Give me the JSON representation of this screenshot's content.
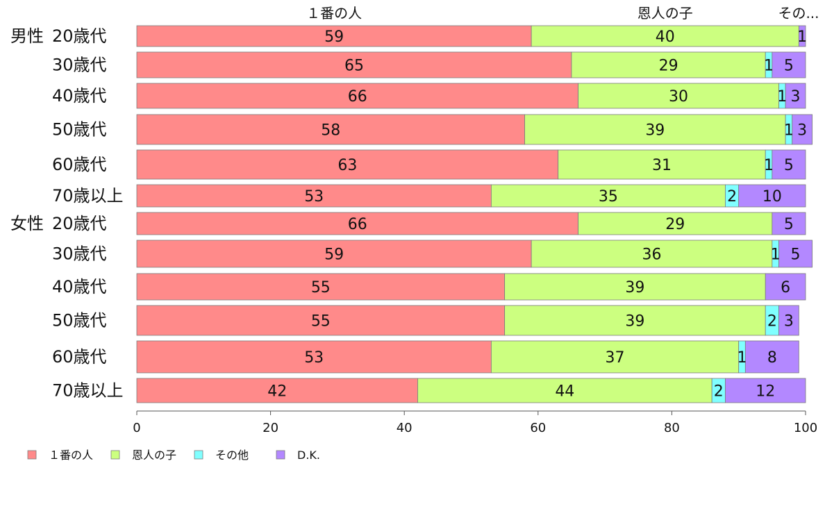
{
  "chart_data": {
    "type": "bar",
    "orientation": "horizontal",
    "stacked": true,
    "xlim": [
      0,
      100
    ],
    "x_ticks": [
      "0",
      "20",
      "40",
      "60",
      "80",
      "100"
    ],
    "top_labels": [
      "１番の人",
      "恩人の子",
      "その..."
    ],
    "groups": [
      {
        "name": "男性",
        "start_index": 0
      },
      {
        "name": "女性",
        "start_index": 6
      }
    ],
    "categories": [
      "20歳代",
      "30歳代",
      "40歳代",
      "50歳代",
      "60歳代",
      "70歳以上",
      "20歳代",
      "30歳代",
      "40歳代",
      "50歳代",
      "60歳代",
      "70歳以上"
    ],
    "series": [
      {
        "name": "１番の人",
        "color": "#ff8a8a",
        "values": [
          59,
          65,
          66,
          58,
          63,
          53,
          66,
          59,
          55,
          55,
          53,
          42
        ]
      },
      {
        "name": "恩人の子",
        "color": "#ccff80",
        "values": [
          40,
          29,
          30,
          39,
          31,
          35,
          29,
          36,
          39,
          39,
          37,
          44
        ]
      },
      {
        "name": "その他",
        "color": "#80ffff",
        "values": [
          0,
          1,
          1,
          1,
          1,
          2,
          0,
          1,
          0,
          2,
          1,
          2
        ]
      },
      {
        "name": "D.K.",
        "color": "#b388ff",
        "values": [
          1,
          5,
          3,
          3,
          5,
          10,
          5,
          5,
          6,
          3,
          8,
          12
        ]
      }
    ],
    "legend_position": "bottom-left",
    "grid": false
  }
}
